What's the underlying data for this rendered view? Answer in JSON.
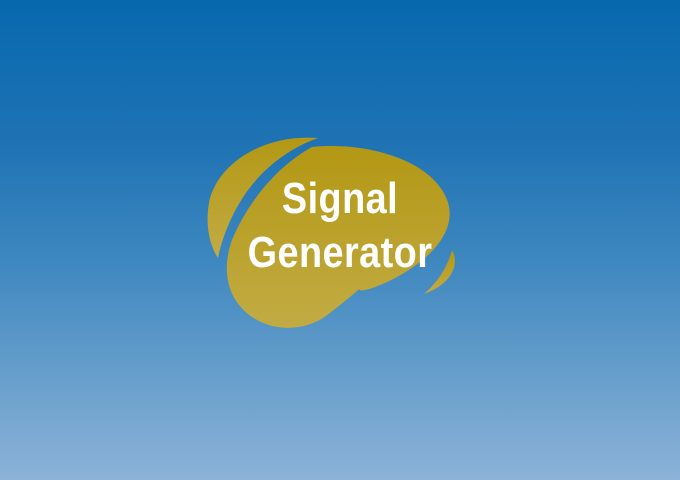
{
  "splash": {
    "title_line1": "Signal",
    "title_line2": "Generator"
  },
  "colors": {
    "background_top": "#0768ae",
    "background_bottom": "#8db2d8",
    "logo_gold": "#b59a1c",
    "logo_gold_light": "#c4ad3e",
    "text": "#ffffff"
  },
  "icons": {
    "logo": "swoosh-ellipse-logo"
  }
}
